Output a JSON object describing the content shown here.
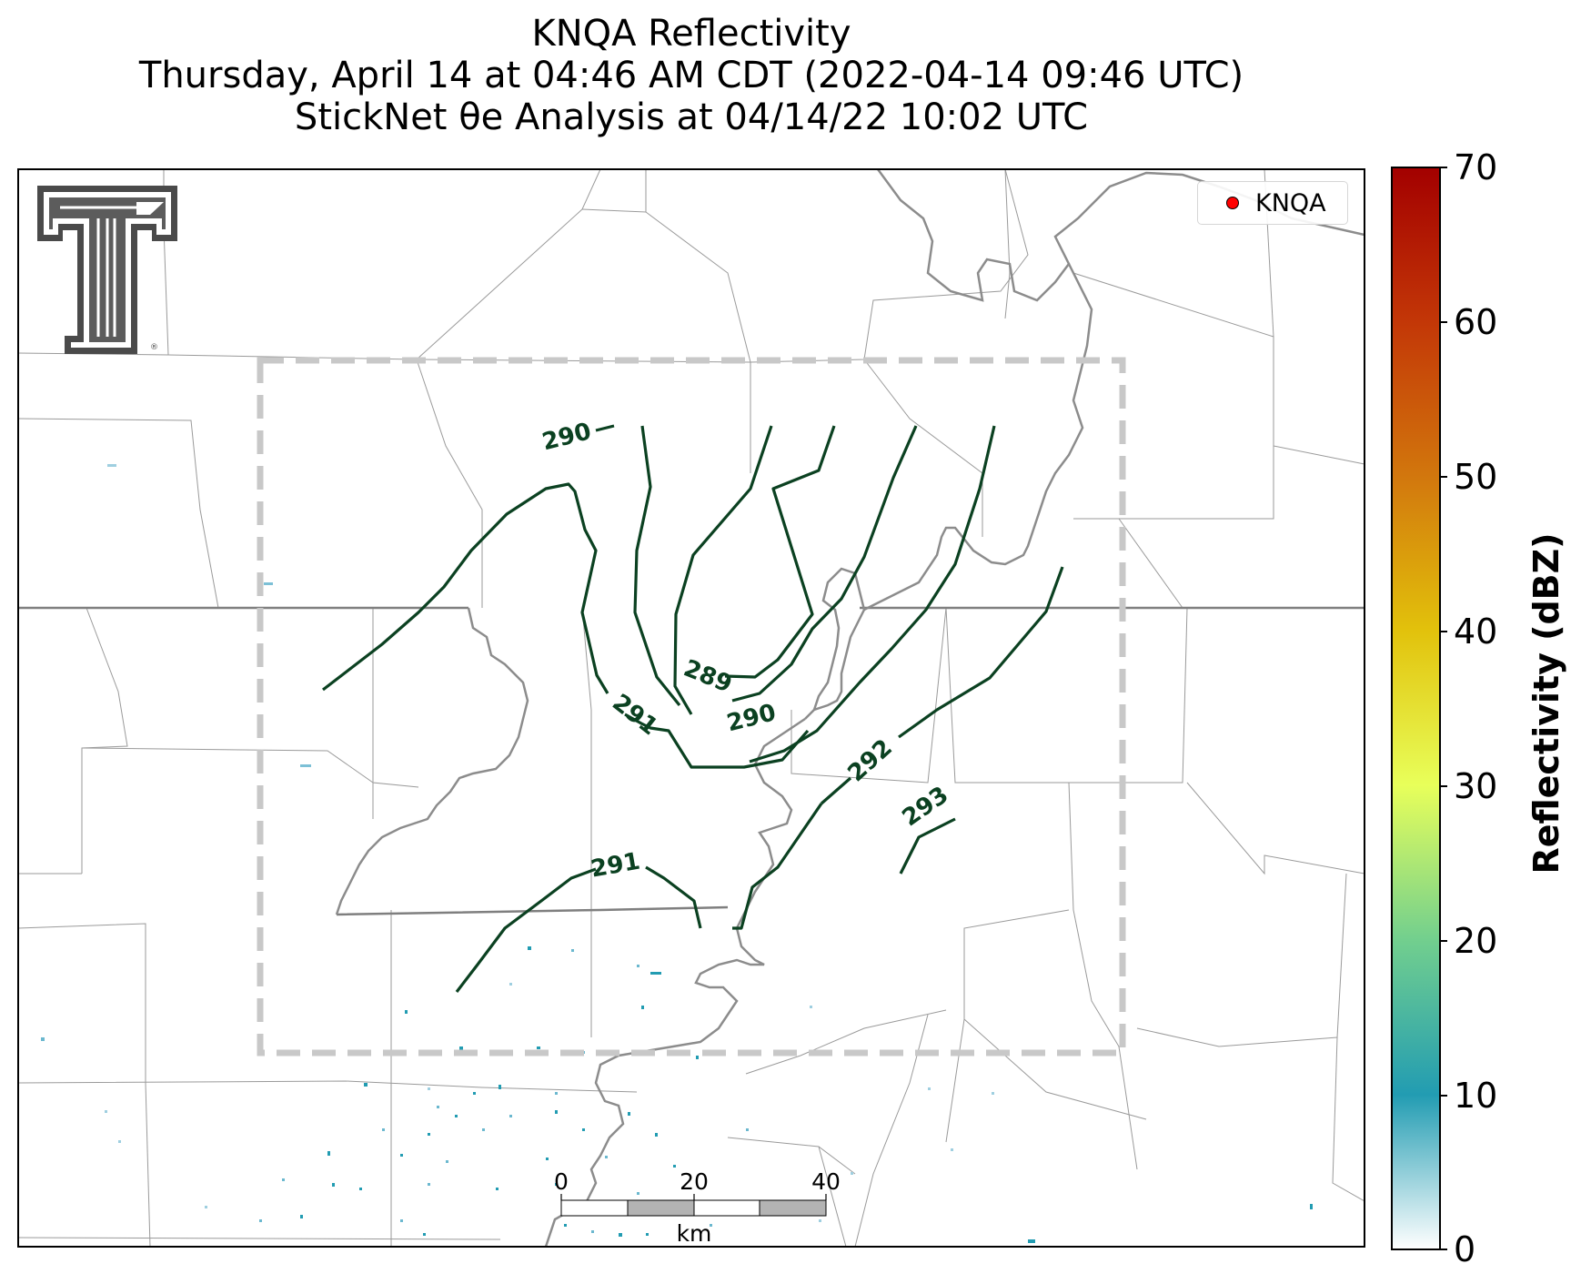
{
  "title": {
    "line1": "KNQA Reflectivity",
    "line2": "Thursday, April 14 at 04:46 AM CDT (2022-04-14 09:46 UTC)",
    "line3": "StickNet θe Analysis at 04/14/22 10:02 UTC"
  },
  "legend": {
    "label": "KNQA",
    "marker_color": "#ff0000"
  },
  "logo": {
    "name": "texas-tech-double-t-logo",
    "text": "T"
  },
  "colorbar": {
    "label": "Reflectivity (dBZ)",
    "ticks": [
      "0",
      "10",
      "20",
      "30",
      "40",
      "50",
      "60",
      "70"
    ],
    "range": [
      0,
      70
    ],
    "colors": [
      "#ffffff",
      "#229cb2",
      "#72cf8e",
      "#e8ff5a",
      "#e2c20c",
      "#d2770d",
      "#c33707",
      "#a30000"
    ]
  },
  "contours": {
    "color": "#0b4121",
    "labels": [
      "290",
      "289",
      "291",
      "290",
      "292",
      "293",
      "291"
    ]
  },
  "scale_bar": {
    "ticks": [
      "0",
      "20",
      "40"
    ],
    "unit": "km"
  }
}
